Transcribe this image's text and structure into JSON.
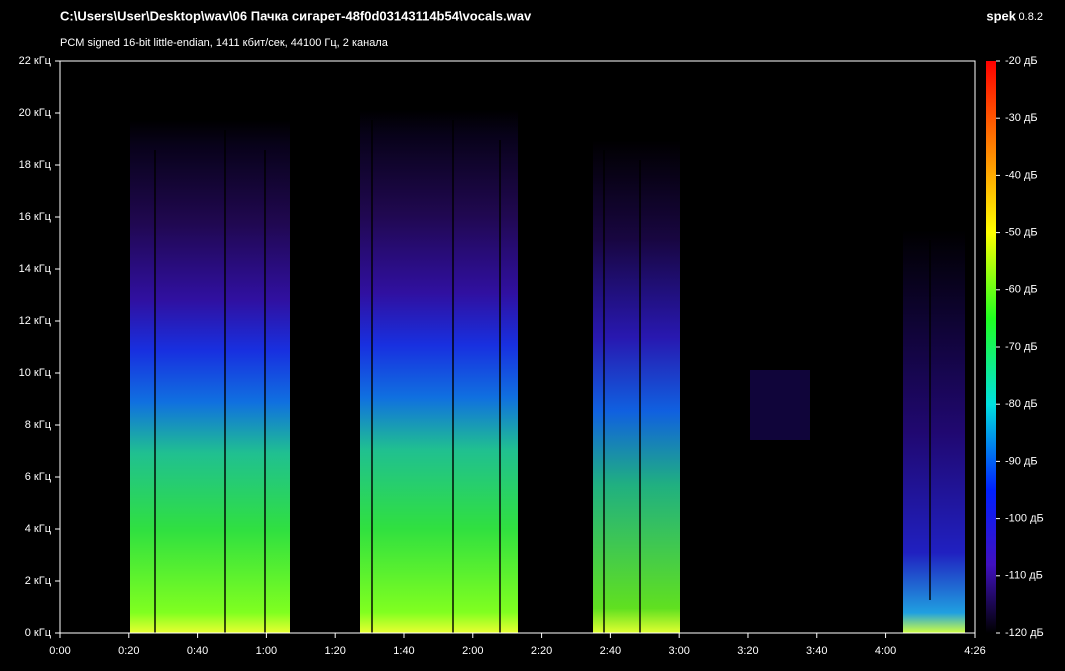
{
  "header": {
    "filepath": "C:\\Users\\User\\Desktop\\wav\\06 Пачка сигарет-48f0d03143114b54\\vocals.wav",
    "app_name": "spek",
    "version": "0.8.2",
    "info": "PCM signed 16-bit little-endian, 1411 кбит/сек, 44100 Гц, 2 канала"
  },
  "x_axis": {
    "lim": [
      0,
      266
    ],
    "ticks": [
      {
        "value": 0,
        "label": "0:00"
      },
      {
        "value": 20,
        "label": "0:20"
      },
      {
        "value": 40,
        "label": "0:40"
      },
      {
        "value": 60,
        "label": "1:00"
      },
      {
        "value": 80,
        "label": "1:20"
      },
      {
        "value": 100,
        "label": "1:40"
      },
      {
        "value": 120,
        "label": "2:00"
      },
      {
        "value": 140,
        "label": "2:20"
      },
      {
        "value": 160,
        "label": "2:40"
      },
      {
        "value": 180,
        "label": "3:00"
      },
      {
        "value": 200,
        "label": "3:20"
      },
      {
        "value": 220,
        "label": "3:40"
      },
      {
        "value": 240,
        "label": "4:00"
      },
      {
        "value": 266,
        "label": "4:26"
      }
    ]
  },
  "y_axis": {
    "lim": [
      0,
      22
    ],
    "ticks": [
      {
        "value": 0,
        "label": "0 кГц"
      },
      {
        "value": 2,
        "label": "2 кГц"
      },
      {
        "value": 4,
        "label": "4 кГц"
      },
      {
        "value": 6,
        "label": "6 кГц"
      },
      {
        "value": 8,
        "label": "8 кГц"
      },
      {
        "value": 10,
        "label": "10 кГц"
      },
      {
        "value": 12,
        "label": "12 кГц"
      },
      {
        "value": 14,
        "label": "14 кГц"
      },
      {
        "value": 16,
        "label": "16 кГц"
      },
      {
        "value": 18,
        "label": "18 кГц"
      },
      {
        "value": 20,
        "label": "20 кГц"
      },
      {
        "value": 22,
        "label": "22 кГц"
      }
    ]
  },
  "color_scale": {
    "lim": [
      -120,
      -20
    ],
    "ticks": [
      {
        "value": -20,
        "label": "-20 дБ"
      },
      {
        "value": -30,
        "label": "-30 дБ"
      },
      {
        "value": -40,
        "label": "-40 дБ"
      },
      {
        "value": -50,
        "label": "-50 дБ"
      },
      {
        "value": -60,
        "label": "-60 дБ"
      },
      {
        "value": -70,
        "label": "-70 дБ"
      },
      {
        "value": -80,
        "label": "-80 дБ"
      },
      {
        "value": -90,
        "label": "-90 дБ"
      },
      {
        "value": -100,
        "label": "-100 дБ"
      },
      {
        "value": -110,
        "label": "-110 дБ"
      },
      {
        "value": -120,
        "label": "-120 дБ"
      }
    ]
  }
}
